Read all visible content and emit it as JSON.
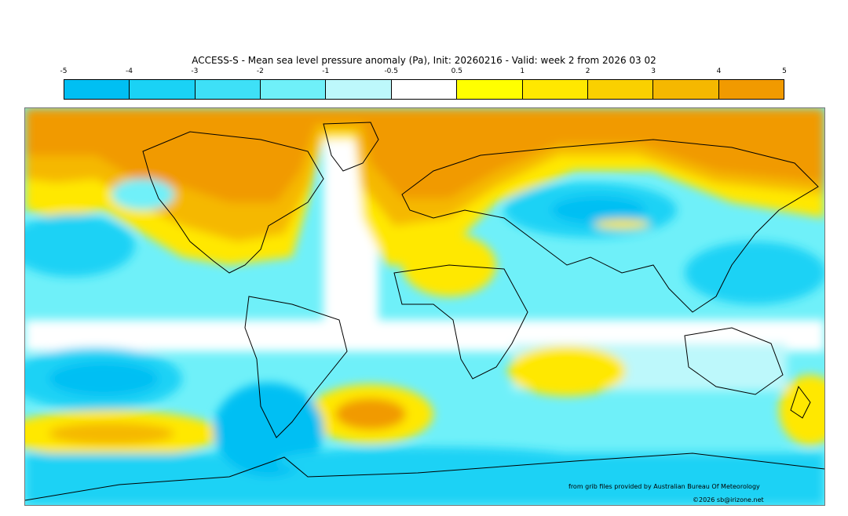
{
  "title": "ACCESS-S - Mean sea level pressure anomaly (Pa), Init: 20260216 - Valid: week 2 from 2026 03 02",
  "colorbar": {
    "ticks": [
      "-5",
      "-4",
      "-3",
      "-2",
      "-1",
      "-0.5",
      "0.5",
      "1",
      "2",
      "3",
      "4",
      "5"
    ],
    "colors": [
      "#00bff3",
      "#1ad2f5",
      "#3ee0f7",
      "#6ff0f9",
      "#bdf8fb",
      "#ffffff",
      "#ffff00",
      "#ffe800",
      "#fad000",
      "#f5b800",
      "#f19a00"
    ]
  },
  "credit": "from grib files provided by Australian Bureau Of Meteorology",
  "copyright": "©2026 sb@irizone.net"
}
